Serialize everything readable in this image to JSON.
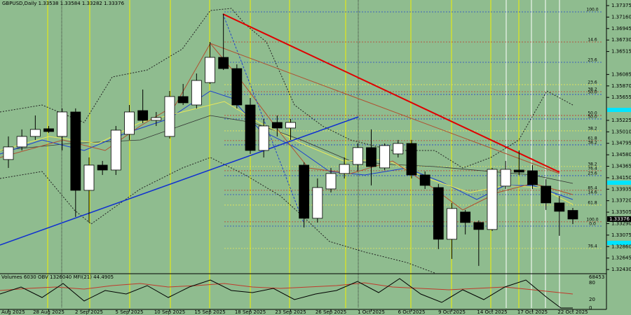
{
  "chart_data": {
    "type": "candlestick",
    "title": "GBPUSD,Daily  1.33538 1.33584 1.33282 1.33376",
    "categories": [
      "Aug 2025",
      null,
      null,
      "28 Aug 2025",
      null,
      null,
      "2 Sep 2025",
      null,
      null,
      "5 Sep 2025",
      null,
      null,
      "10 Sep 2025",
      null,
      null,
      "15 Sep 2025",
      null,
      null,
      "18 Sep 2025",
      null,
      null,
      "23 Sep 2025",
      null,
      null,
      "26 Sep 2025",
      null,
      null,
      "1 Oct 2025",
      null,
      null,
      "6 Oct 2025",
      null,
      null,
      "9 Oct 2025",
      null,
      null,
      "14 Oct 2025",
      null,
      null,
      "17 Oct 2025",
      null,
      null,
      "22 Oct 2025"
    ],
    "open": [
      1.34491,
      1.34727,
      1.34924,
      1.35068,
      1.34924,
      1.35382,
      1.33914,
      1.34386,
      1.34294,
      1.34963,
      1.35408,
      1.35225,
      1.34924,
      1.35671,
      1.35513,
      1.35933,
      1.36405,
      1.36195,
      1.35513,
      1.34661,
      1.35186,
      1.35081,
      1.34386,
      1.3339,
      1.3394,
      1.34229,
      1.34399,
      1.34714,
      1.34334,
      1.34596,
      1.34792,
      1.34202,
      1.33966,
      1.32997,
      1.33508,
      1.33311,
      1.3318,
      1.33993,
      1.34294,
      1.34281,
      1.33993,
      1.33678,
      1.33538
    ],
    "high": [
      1.34924,
      1.35055,
      1.35317,
      1.3512,
      1.35448,
      1.35448,
      1.3453,
      1.34465,
      1.3512,
      1.35513,
      1.35802,
      1.35382,
      1.35775,
      1.35907,
      1.36103,
      1.36693,
      1.37218,
      1.36274,
      1.35644,
      1.35251,
      1.35317,
      1.35251,
      1.34438,
      1.34137,
      1.34334,
      1.3453,
      1.34792,
      1.35055,
      1.34792,
      1.34858,
      1.34858,
      1.34268,
      1.34032,
      1.33678,
      1.33547,
      1.3335,
      1.34334,
      1.34465,
      1.34661,
      1.34386,
      1.34124,
      1.33809,
      1.33584
    ],
    "low": [
      1.34334,
      1.34661,
      1.34858,
      1.34989,
      1.34661,
      1.33416,
      1.33311,
      1.34202,
      1.34202,
      1.34858,
      1.35172,
      1.3512,
      1.34884,
      1.35513,
      1.35448,
      1.35907,
      1.36169,
      1.35448,
      1.34596,
      1.3453,
      1.34924,
      1.34858,
      1.33219,
      1.33311,
      1.33875,
      1.34137,
      1.34268,
      1.34006,
      1.34294,
      1.3453,
      1.34137,
      1.3394,
      1.32813,
      1.32629,
      1.33088,
      1.32498,
      1.33154,
      1.3394,
      1.34202,
      1.3394,
      1.33547,
      1.33062,
      1.33282
    ],
    "close": [
      1.34727,
      1.34924,
      1.35055,
      1.35015,
      1.35382,
      1.33914,
      1.34386,
      1.34294,
      1.35041,
      1.35382,
      1.35225,
      1.35277,
      1.35671,
      1.35553,
      1.35972,
      1.36405,
      1.36195,
      1.35513,
      1.34661,
      1.3512,
      1.35081,
      1.35186,
      1.3339,
      1.33966,
      1.34229,
      1.34399,
      1.34714,
      1.3436,
      1.34753,
      1.34792,
      1.34202,
      1.34006,
      1.32997,
      1.33573,
      1.33311,
      1.3318,
      1.34307,
      1.34307,
      1.34255,
      1.34019,
      1.33678,
      1.33521,
      1.33376
    ],
    "up_color": "#ffffff",
    "down_color": "#000000",
    "ylim": [
      1.32365,
      1.3748
    ],
    "yticks": [
      1.37375,
      {
        "value": 1.3716,
        "label": "1.37160"
      },
      1.36945,
      {
        "value": 1.3673,
        "label": "1.36730"
      },
      1.36515,
      1.36085,
      {
        "value": 1.3587,
        "label": "1.35870"
      },
      1.35655,
      1.35225,
      {
        "value": 1.3501,
        "label": "1.35010"
      },
      1.34795,
      {
        "value": 1.3458,
        "label": "1.34580"
      },
      1.34365,
      {
        "value": 1.3415,
        "label": "1.34150"
      },
      1.33935,
      {
        "value": 1.3372,
        "label": "1.33720"
      },
      1.33505,
      {
        "value": 1.3329,
        "label": "1.33290"
      },
      1.33075,
      {
        "value": 1.3286,
        "label": "1.32860"
      },
      1.32645,
      {
        "value": 1.3243,
        "label": "1.32430"
      }
    ],
    "fib_levels": [
      {
        "label": "100.0",
        "price": 1.37257,
        "color": "#2244cc"
      },
      {
        "label": "14.6",
        "price": 1.36693,
        "color": "#c0392b"
      },
      {
        "label": "23.6",
        "price": 1.36313,
        "color": "#2244cc"
      },
      {
        "label": "23.6",
        "price": 1.35894,
        "color": "#e8e85a"
      },
      {
        "label": "38.2",
        "price": 1.35762,
        "color": "#c0392b"
      },
      {
        "label": "50.0",
        "price": 1.3571,
        "color": "#2244cc"
      },
      {
        "label": "50.0",
        "price": 1.35317,
        "color": "#c0392b"
      },
      {
        "label": "50.0",
        "price": 1.35251,
        "color": "#2244cc"
      },
      {
        "label": "38.2",
        "price": 1.35028,
        "color": "#e8e85a"
      },
      {
        "label": "61.8",
        "price": 1.34845,
        "color": "#c0392b"
      },
      {
        "label": "38.2",
        "price": 1.34766,
        "color": "#2244cc"
      },
      {
        "label": "38.2",
        "price": 1.3436,
        "color": "#e8e85a"
      },
      {
        "label": "76.4",
        "price": 1.34281,
        "color": "#c0392b"
      },
      {
        "label": "23.6",
        "price": 1.34189,
        "color": "#2244cc"
      },
      {
        "label": "85.4",
        "price": 1.33914,
        "color": "#c0392b"
      },
      {
        "label": "14.6",
        "price": 1.33834,
        "color": "#2244cc"
      },
      {
        "label": "61.8",
        "price": 1.33638,
        "color": "#e8e85a"
      },
      {
        "label": "100.0",
        "price": 1.33324,
        "color": "#c0392b"
      },
      {
        "label": "0.0",
        "price": 1.33244,
        "color": "#2244cc"
      },
      {
        "label": "76.4",
        "price": 1.32826,
        "color": "#e8e85a"
      }
    ],
    "indicator": {
      "title": "Volumes 6030  OBV 1326040  MFI(21) 44.4905",
      "scale_labels": [
        "68453",
        "80",
        "20",
        "0"
      ]
    }
  }
}
